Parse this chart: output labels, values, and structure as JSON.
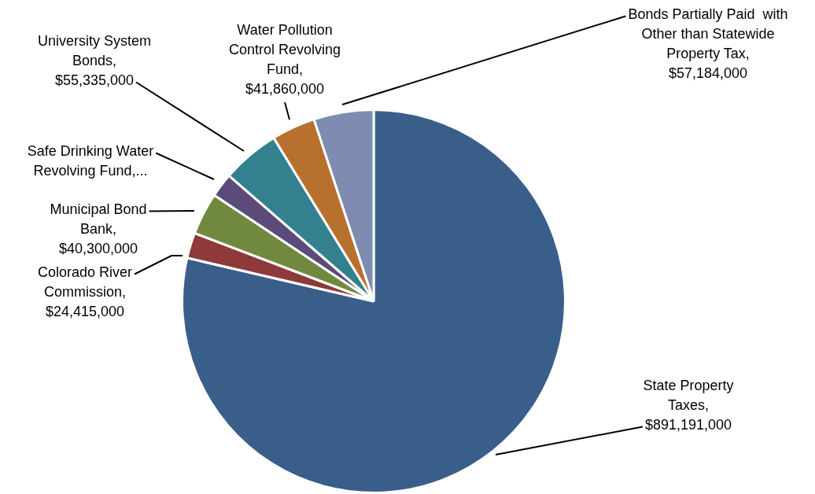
{
  "chart_data": {
    "type": "pie",
    "categories": [
      "State Property Taxes, $891,191,000",
      "Colorado River Commission, $24,415,000",
      "Municipal Bond Bank, $40,300,000",
      "Safe Drinking Water Revolving Fund,...",
      "University System Bonds, $55,335,000",
      "Water Pollution Control Revolving Fund, $41,860,000",
      "Bonds Partially Paid  with Other than Statewide Property Tax, $57,184,000"
    ],
    "values": [
      891191000,
      24415000,
      40300000,
      23000000,
      55335000,
      41860000,
      57184000
    ],
    "colors": [
      "#3a5e8a",
      "#8e3a3a",
      "#71893f",
      "#5c4a7a",
      "#33808f",
      "#b8702e",
      "#7d8cb0"
    ],
    "legend": false
  }
}
